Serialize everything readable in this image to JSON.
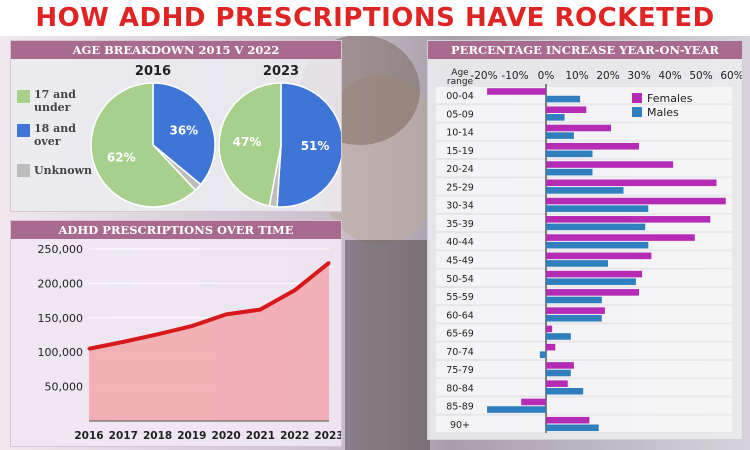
{
  "title": "HOW ADHD PRESCRIPTIONS HAVE ROCKETED",
  "colors": {
    "title_red": "#e02424",
    "header_mauve": "#a86b8f",
    "green": "#a8d08d",
    "blue": "#3e75d6",
    "grey": "#bdbdbd",
    "line_red": "#d7191c",
    "fill_pink": "#f2a6ad",
    "female_magenta": "#b52bb5",
    "male_blue": "#2f7fbf"
  },
  "chart_data": [
    {
      "type": "pie",
      "title": "AGE BREAKDOWN 2015 V 2022",
      "legend": [
        "17 and under",
        "18 and over",
        "Unknown"
      ],
      "pies": [
        {
          "label": "2016",
          "values": [
            62,
            36,
            2
          ],
          "value_labels": [
            "62%",
            "36%",
            ""
          ]
        },
        {
          "label": "2023",
          "values": [
            47,
            51,
            2
          ],
          "value_labels": [
            "47%",
            "51%",
            ""
          ]
        }
      ]
    },
    {
      "type": "area",
      "title": "ADHD PRESCRIPTIONS OVER TIME",
      "x": [
        "2016",
        "2017",
        "2018",
        "2019",
        "2020",
        "2021",
        "2022",
        "2023"
      ],
      "values": [
        105000,
        115000,
        126000,
        138000,
        155000,
        162000,
        190000,
        230000
      ],
      "yticks": [
        50000,
        100000,
        150000,
        200000,
        250000
      ],
      "ytick_labels": [
        "50,000",
        "100,000",
        "150,000",
        "200,000",
        "250,000"
      ],
      "ylim": [
        0,
        250000
      ]
    },
    {
      "type": "bar",
      "orientation": "horizontal",
      "title": "PERCENTAGE INCREASE YEAR-ON-YEAR",
      "y_axis_title": "Age range",
      "categories": [
        "00-04",
        "05-09",
        "10-14",
        "15-19",
        "20-24",
        "25-29",
        "30-34",
        "35-39",
        "40-44",
        "45-49",
        "50-54",
        "55-59",
        "60-64",
        "65-69",
        "70-74",
        "75-79",
        "80-84",
        "85-89",
        "90+"
      ],
      "series": [
        {
          "name": "Females",
          "values": [
            -19,
            13,
            21,
            30,
            41,
            55,
            58,
            53,
            48,
            34,
            31,
            30,
            19,
            2,
            3,
            9,
            7,
            -8,
            14
          ]
        },
        {
          "name": "Males",
          "values": [
            11,
            6,
            9,
            15,
            15,
            25,
            33,
            32,
            33,
            20,
            29,
            18,
            18,
            8,
            -2,
            8,
            12,
            -19,
            17
          ]
        }
      ],
      "xticks": [
        -20,
        -10,
        0,
        10,
        20,
        30,
        40,
        50,
        60
      ],
      "xtick_labels": [
        "-20%",
        "-10%",
        "0%",
        "10%",
        "20%",
        "30%",
        "40%",
        "50%",
        "60%"
      ],
      "xlim": [
        -20,
        60
      ]
    }
  ]
}
